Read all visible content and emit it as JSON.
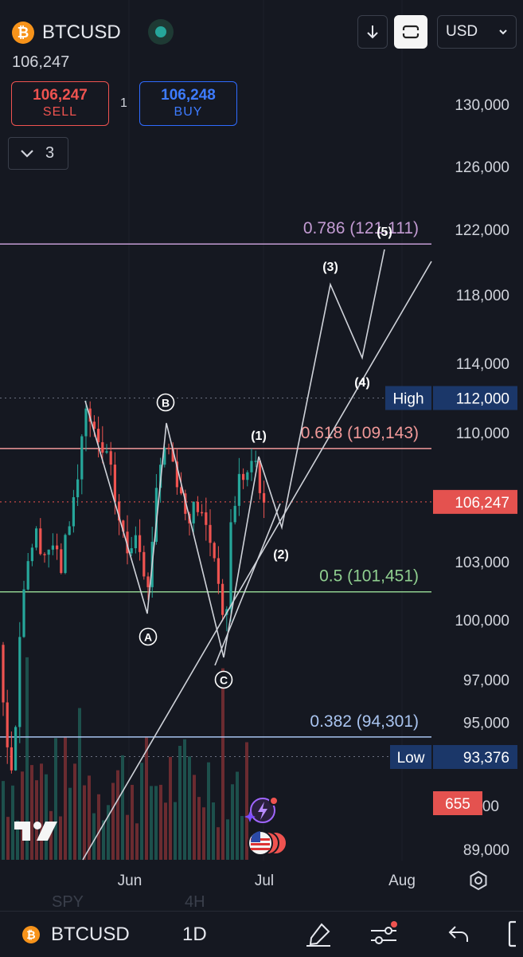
{
  "header": {
    "symbol": "BTCUSD",
    "last_price": "106,247",
    "sell": {
      "price": "106,247",
      "label": "SELL"
    },
    "spread": "1",
    "buy": {
      "price": "106,248",
      "label": "BUY"
    },
    "indicator_count": "3",
    "currency": "USD"
  },
  "ghost_labels": {
    "symbol": "SPY",
    "interval": "4H"
  },
  "chart_data": {
    "type": "candlestick",
    "x_axis_labels": [
      "Jun",
      "Jul",
      "Aug"
    ],
    "y_axis_labels": [
      "130,000",
      "126,000",
      "122,000",
      "118,000",
      "114,000",
      "110,000",
      "103,000",
      "100,000",
      "97,000",
      "95,000",
      "89,000"
    ],
    "y_axis_partial": ".00",
    "current_price_tag": "106,247",
    "high_tag": {
      "label": "High",
      "value": "112,000"
    },
    "low_tag": {
      "label": "Low",
      "value": "93,376"
    },
    "volume_tag": "655",
    "fib_levels": [
      {
        "label": "0.786 (121,111)",
        "value": 121111,
        "color": "#c39bd3"
      },
      {
        "label": "0.618 (109,143)",
        "value": 109143,
        "color": "#f19999"
      },
      {
        "label": "0.5 (101,451)",
        "value": 101451,
        "color": "#8fce8f"
      },
      {
        "label": "0.382 (94,301)",
        "value": 94301,
        "color": "#a9c4f0"
      }
    ],
    "wave_labels": [
      "(1)",
      "(2)",
      "(3)",
      "(4)",
      "(5)"
    ],
    "abc_labels": [
      "A",
      "B",
      "C"
    ],
    "colors": {
      "up": "#26a69a",
      "down": "#ef5350",
      "background": "#151821"
    }
  },
  "bottom_bar": {
    "symbol": "BTCUSD",
    "interval": "1D"
  }
}
